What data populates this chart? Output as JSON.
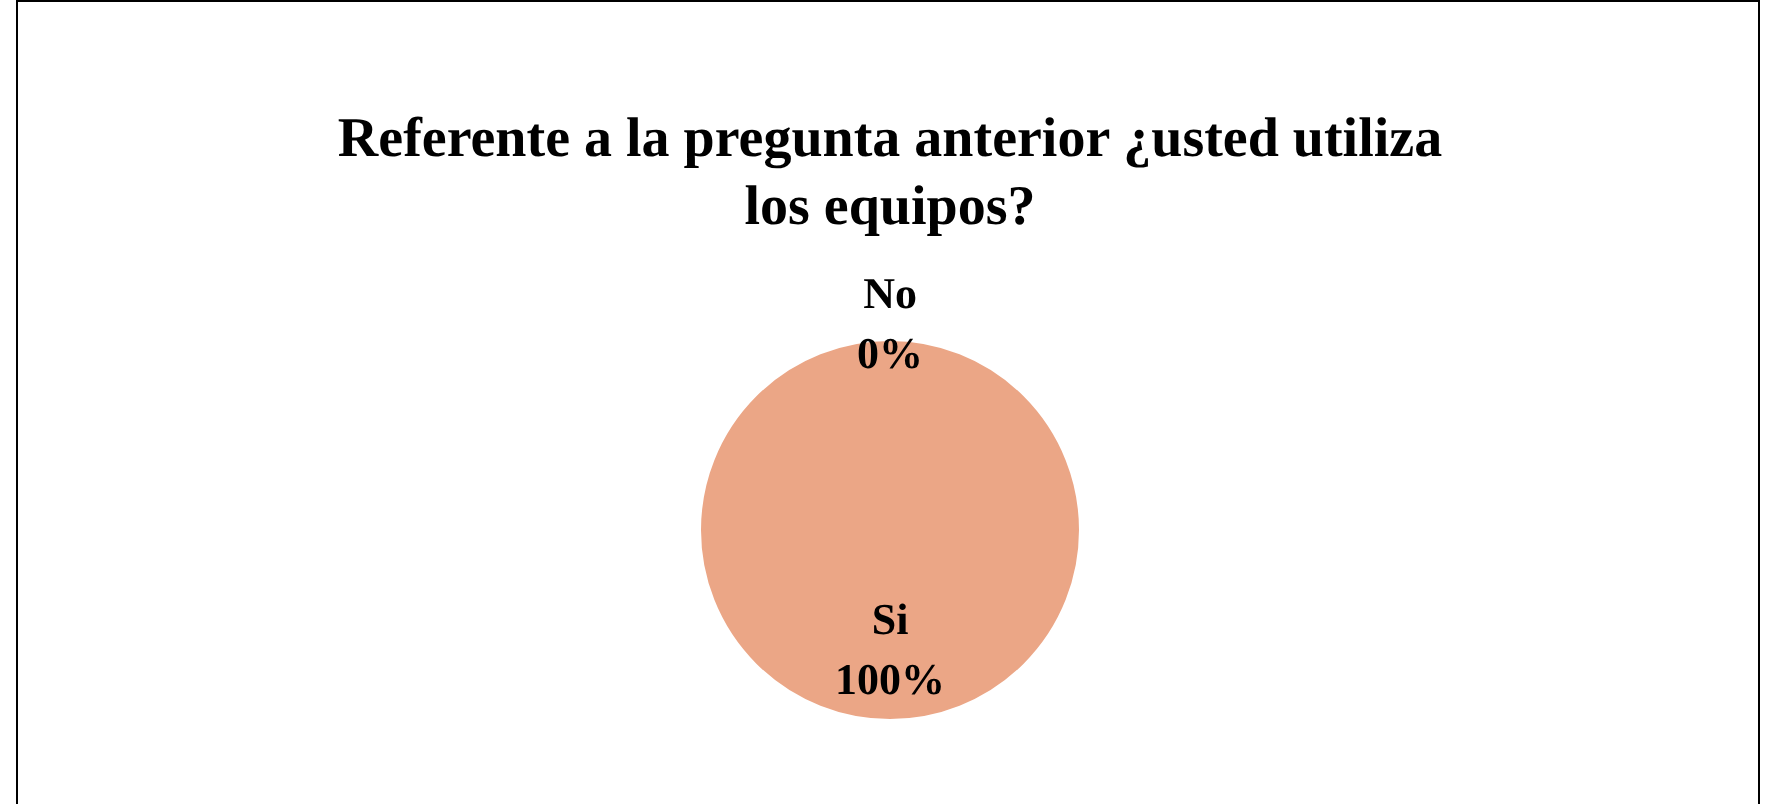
{
  "chart_data": {
    "type": "pie",
    "title": "Referente a la pregunta anterior ¿usted utiliza los equipos?",
    "categories": [
      "No",
      "Si"
    ],
    "values": [
      0,
      100
    ],
    "value_labels": [
      "0%",
      "100%"
    ],
    "colors": [
      "#d98b65",
      "#eba686"
    ]
  }
}
